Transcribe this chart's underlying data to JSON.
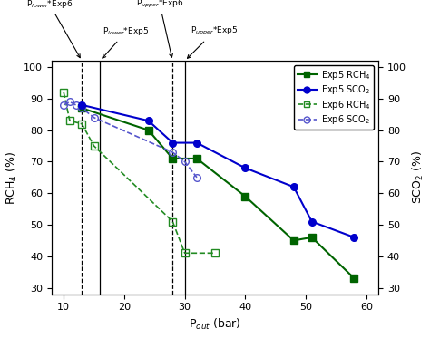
{
  "exp5_rch4_x": [
    13,
    24,
    28,
    32,
    40,
    48,
    51,
    58
  ],
  "exp5_rch4_y": [
    87,
    80,
    71,
    71,
    59,
    45,
    46,
    33
  ],
  "exp5_sco2_x": [
    13,
    24,
    28,
    32,
    40,
    48,
    51,
    58
  ],
  "exp5_sco2_y": [
    88,
    83,
    76,
    76,
    68,
    62,
    51,
    46
  ],
  "exp6_rch4_x": [
    10,
    11,
    13,
    15,
    28,
    30,
    35
  ],
  "exp6_rch4_y": [
    92,
    83,
    82,
    75,
    51,
    41,
    41
  ],
  "exp6_sco2_x": [
    10,
    11,
    12,
    13,
    15,
    28,
    30,
    32
  ],
  "exp6_sco2_y": [
    88,
    89,
    88,
    87,
    84,
    73,
    70,
    65
  ],
  "color_exp5_rch4": "#006400",
  "color_exp5_sco2": "#0000CC",
  "color_exp6_rch4": "#228B22",
  "color_exp6_sco2": "#5555CC",
  "vline_lower_exp6": 13,
  "vline_lower_exp5": 16,
  "vline_upper_exp6": 28,
  "vline_upper_exp5": 30,
  "xlim": [
    8,
    62
  ],
  "ylim": [
    28,
    102
  ],
  "xlabel": "P$_{out}$ (bar)",
  "ylabel_left": "RCH$_4$ (%)",
  "ylabel_right": "SCO$_2$ (%)",
  "xticks": [
    10,
    20,
    30,
    40,
    50,
    60
  ],
  "yticks": [
    30,
    40,
    50,
    60,
    70,
    80,
    90,
    100
  ],
  "figsize": [
    4.74,
    3.73
  ],
  "dpi": 100
}
